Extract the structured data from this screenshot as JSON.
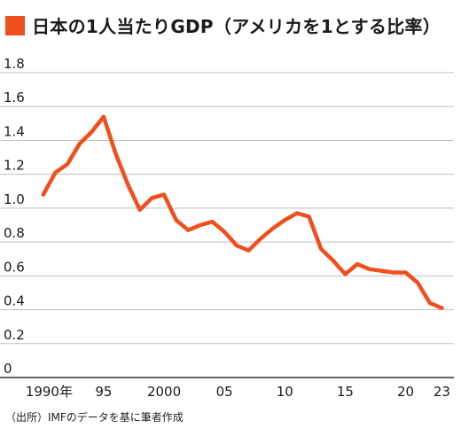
{
  "title": "日本の1人当たりGDP（アメリカを1とする比率）",
  "source": "（出所）IMFのデータを基に筆者作成",
  "colors": {
    "line": "#f04e1c",
    "marker": "#f04e1c",
    "grid": "#bfbfbf",
    "axis": "#333333"
  },
  "chart_data": {
    "type": "line",
    "title": "日本の1人当たりGDP（アメリカを1とする比率）",
    "xlabel": "",
    "ylabel": "",
    "ylim": [
      0,
      1.8
    ],
    "xlim": [
      1989.5,
      2024
    ],
    "grid": "horizontal",
    "y_ticks": [
      {
        "value": 0,
        "label": "0"
      },
      {
        "value": 0.2,
        "label": "0.2"
      },
      {
        "value": 0.4,
        "label": "0.4"
      },
      {
        "value": 0.6,
        "label": "0.6"
      },
      {
        "value": 0.8,
        "label": "0.8"
      },
      {
        "value": 1.0,
        "label": "1.0"
      },
      {
        "value": 1.2,
        "label": "1.2"
      },
      {
        "value": 1.4,
        "label": "1.4"
      },
      {
        "value": 1.6,
        "label": "1.6"
      },
      {
        "value": 1.8,
        "label": "1.8"
      }
    ],
    "x_ticks": [
      {
        "value": 1990,
        "label": "1990年"
      },
      {
        "value": 1995,
        "label": "95"
      },
      {
        "value": 2000,
        "label": "2000"
      },
      {
        "value": 2005,
        "label": "05"
      },
      {
        "value": 2010,
        "label": "10"
      },
      {
        "value": 2015,
        "label": "15"
      },
      {
        "value": 2020,
        "label": "20"
      },
      {
        "value": 2023,
        "label": "23"
      }
    ],
    "series": [
      {
        "x": [
          1990,
          1991,
          1992,
          1993,
          1994,
          1995,
          1996,
          1997,
          1998,
          1999,
          2000,
          2001,
          2002,
          2003,
          2004,
          2005,
          2006,
          2007,
          2008,
          2009,
          2010,
          2011,
          2012,
          2013,
          2014,
          2015,
          2016,
          2017,
          2018,
          2019,
          2020,
          2021,
          2022,
          2023
        ],
        "values": [
          1.08,
          1.21,
          1.26,
          1.38,
          1.45,
          1.54,
          1.32,
          1.14,
          0.99,
          1.06,
          1.08,
          0.93,
          0.87,
          0.9,
          0.92,
          0.86,
          0.78,
          0.75,
          0.82,
          0.88,
          0.93,
          0.97,
          0.95,
          0.76,
          0.69,
          0.61,
          0.67,
          0.64,
          0.63,
          0.62,
          0.62,
          0.56,
          0.44,
          0.41
        ]
      }
    ]
  }
}
